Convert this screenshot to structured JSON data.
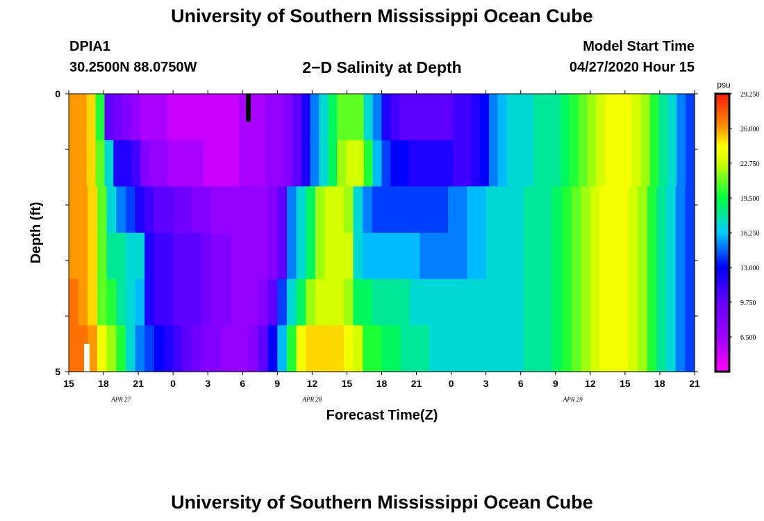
{
  "header": {
    "title": "University of Southern Mississippi Ocean Cube",
    "station": "DPIA1",
    "coords": "30.2500N 88.0750W",
    "plot_title": "2−D Salinity at Depth",
    "model_label": "Model Start Time",
    "model_time": "04/27/2020 Hour 15"
  },
  "footer": {
    "title": "University of Southern Mississippi Ocean Cube"
  },
  "chart_data": {
    "type": "heatmap",
    "title": "2−D Salinity at Depth",
    "xlabel": "Forecast Time(Z)",
    "ylabel": "Depth (ft)",
    "x_tick_labels": [
      "15",
      "18",
      "21",
      "0",
      "3",
      "6",
      "9",
      "12",
      "15",
      "18",
      "21",
      "0",
      "3",
      "6",
      "9",
      "12",
      "15",
      "18",
      "21"
    ],
    "date_labels": [
      {
        "label": "APR 27",
        "tick_index": 1.5
      },
      {
        "label": "APR 28",
        "tick_index": 7
      },
      {
        "label": "APR 29",
        "tick_index": 14.5
      }
    ],
    "x_hours_start": 0,
    "x_hours_end": 54,
    "y_tick_labels": [
      "0",
      "5"
    ],
    "ylim": [
      0,
      5
    ],
    "depth_levels": [
      0,
      1,
      2,
      3,
      4,
      5
    ],
    "colorbar": {
      "unit": "psu",
      "labels": [
        "29.250",
        "26.000",
        "22.750",
        "19.500",
        "16.250",
        "13.000",
        "9.750",
        "6.500"
      ],
      "range": [
        3.25,
        29.25
      ]
    },
    "rows": [
      [
        26,
        26,
        25,
        20,
        10,
        9,
        8,
        7,
        6,
        6,
        6,
        5,
        5,
        5,
        5,
        5,
        5,
        5,
        5,
        6,
        6,
        6,
        7,
        7,
        8,
        10,
        12,
        15,
        17,
        19,
        21,
        21,
        21,
        17,
        15,
        12,
        11,
        10,
        10,
        10,
        10,
        10,
        10,
        11,
        11,
        12,
        13,
        15,
        16,
        17,
        17,
        17,
        18,
        18,
        18,
        19,
        20,
        21,
        22,
        23,
        24,
        24,
        24,
        23,
        22,
        20,
        18,
        17,
        15,
        14
      ],
      [
        26,
        26,
        25,
        21,
        17,
        12,
        12,
        11,
        8,
        7,
        7,
        6,
        6,
        6,
        6,
        5,
        5,
        5,
        5,
        6,
        6,
        6,
        7,
        7,
        8,
        10,
        12,
        15,
        17,
        19,
        22,
        23,
        23,
        20,
        16,
        14,
        13,
        13,
        12,
        12,
        12,
        12,
        12,
        11,
        11,
        12,
        13,
        15,
        16,
        17,
        17,
        17,
        18,
        18,
        18,
        19,
        20,
        21,
        22,
        23,
        24,
        24,
        24,
        23,
        22,
        20,
        18,
        17,
        15,
        14
      ],
      [
        26,
        26,
        25,
        21,
        17,
        15,
        14,
        12,
        11,
        10,
        10,
        9,
        9,
        8,
        8,
        7,
        7,
        7,
        7,
        7,
        7,
        8,
        10,
        15,
        17,
        19,
        22,
        23,
        23,
        22,
        17,
        15,
        14,
        14,
        14,
        14,
        14,
        14,
        14,
        14,
        15,
        15,
        16,
        16,
        17,
        17,
        17,
        17,
        18,
        18,
        18,
        19,
        20,
        21,
        22,
        23,
        24,
        24,
        24,
        23,
        22,
        20,
        18,
        17,
        15,
        14
      ],
      [
        26,
        26,
        25,
        21,
        18,
        18,
        17,
        17,
        12,
        11,
        11,
        10,
        10,
        10,
        9,
        8,
        8,
        7,
        7,
        7,
        7,
        8,
        10,
        15,
        17,
        19,
        22,
        23,
        23,
        23,
        17,
        16,
        16,
        16,
        16,
        16,
        16,
        15,
        15,
        15,
        15,
        15,
        16,
        16,
        17,
        17,
        17,
        17,
        18,
        18,
        18,
        19,
        20,
        21,
        22,
        23,
        24,
        24,
        24,
        23,
        22,
        20,
        18,
        17,
        15,
        14
      ],
      [
        27,
        26,
        25,
        21,
        20,
        18,
        17,
        16,
        12,
        11,
        11,
        10,
        10,
        10,
        9,
        8,
        8,
        7,
        7,
        7,
        8,
        10,
        14,
        17,
        19,
        22,
        23,
        23,
        23,
        22,
        19,
        19,
        18,
        18,
        18,
        18,
        17,
        17,
        17,
        17,
        17,
        17,
        17,
        17,
        17,
        17,
        17,
        17,
        18,
        18,
        18,
        19,
        20,
        21,
        22,
        23,
        24,
        24,
        24,
        23,
        22,
        20,
        18,
        17,
        15,
        14
      ],
      [
        27,
        27,
        26,
        24,
        22,
        20,
        17,
        15,
        14,
        13,
        12,
        11,
        10,
        9,
        8,
        8,
        7,
        7,
        7,
        8,
        10,
        13,
        16,
        20,
        24,
        25,
        25,
        25,
        25,
        24,
        23,
        20,
        20,
        19,
        19,
        18,
        18,
        18,
        17,
        17,
        17,
        17,
        17,
        17,
        17,
        17,
        17,
        17,
        18,
        18,
        18,
        19,
        20,
        21,
        22,
        23,
        24,
        24,
        24,
        23,
        22,
        20,
        18,
        17,
        15,
        14
      ]
    ]
  }
}
